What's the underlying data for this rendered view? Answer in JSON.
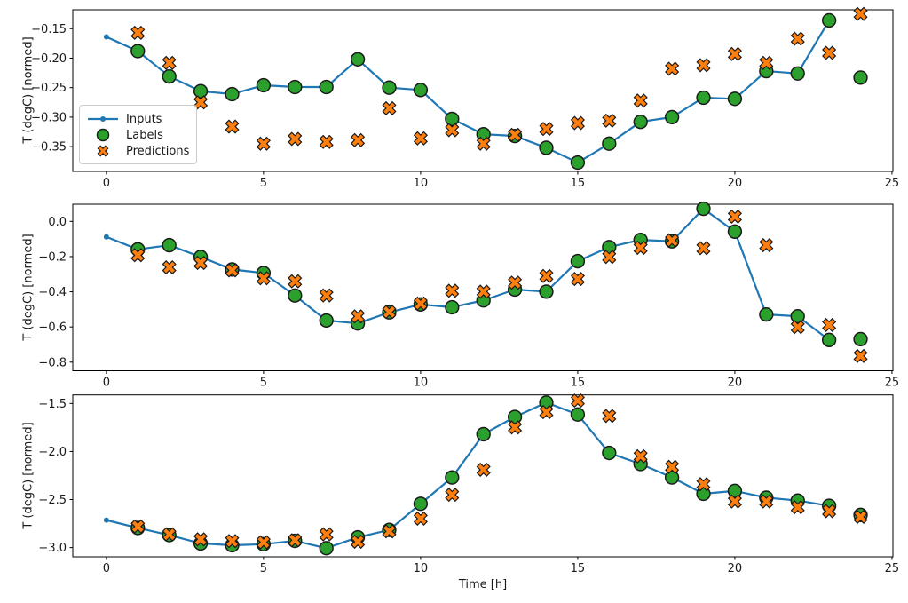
{
  "figure": {
    "xlabel": "Time [h]",
    "legend": {
      "position": "center left of top subplot",
      "items": [
        {
          "label": "Inputs",
          "marker": "line-with-dot",
          "color": "#1f77b4"
        },
        {
          "label": "Labels",
          "marker": "circle",
          "color": "#2ca02c"
        },
        {
          "label": "Predictions",
          "marker": "X",
          "color": "#ff7f0e"
        }
      ]
    },
    "colors": {
      "inputs_line": "#1f77b4",
      "labels_fill": "#2ca02c",
      "predictions_fill": "#ff7f0e",
      "marker_edge": "#1a1a1a",
      "spine": "#000000"
    }
  },
  "chart_data": [
    {
      "type": "line",
      "title": "",
      "ylabel": "T (degC) [normed]",
      "xlim": [
        -1.07,
        25.03
      ],
      "ylim": [
        -0.392,
        -0.118
      ],
      "xticks": [
        0,
        5,
        10,
        15,
        20,
        25
      ],
      "xtick_labels": [
        "0",
        "5",
        "10",
        "15",
        "20",
        "25"
      ],
      "ytick_values": [
        -0.15,
        -0.2,
        -0.25,
        -0.3,
        -0.35
      ],
      "ytick_labels": [
        "−0.15",
        "−0.20",
        "−0.25",
        "−0.30",
        "−0.35"
      ],
      "grid": false,
      "series": [
        {
          "name": "Inputs",
          "style": "line+dot",
          "x": [
            0,
            1,
            2,
            3,
            4,
            5,
            6,
            7,
            8,
            9,
            10,
            11,
            12,
            13,
            14,
            15,
            16,
            17,
            18,
            19,
            20,
            21,
            22,
            23
          ],
          "y": [
            -0.164,
            -0.188,
            -0.231,
            -0.256,
            -0.261,
            -0.246,
            -0.249,
            -0.249,
            -0.202,
            -0.25,
            -0.254,
            -0.303,
            -0.329,
            -0.332,
            -0.352,
            -0.377,
            -0.345,
            -0.308,
            -0.3,
            -0.267,
            -0.269,
            -0.222,
            -0.226,
            -0.136
          ]
        },
        {
          "name": "Labels",
          "style": "circle",
          "x": [
            1,
            2,
            3,
            4,
            5,
            6,
            7,
            8,
            9,
            10,
            11,
            12,
            13,
            14,
            15,
            16,
            17,
            18,
            19,
            20,
            21,
            22,
            23,
            24
          ],
          "y": [
            -0.188,
            -0.231,
            -0.256,
            -0.261,
            -0.246,
            -0.249,
            -0.249,
            -0.202,
            -0.25,
            -0.254,
            -0.303,
            -0.329,
            -0.332,
            -0.352,
            -0.377,
            -0.345,
            -0.308,
            -0.3,
            -0.267,
            -0.269,
            -0.222,
            -0.226,
            -0.136,
            -0.233
          ]
        },
        {
          "name": "Predictions",
          "style": "X",
          "x": [
            1,
            2,
            3,
            4,
            5,
            6,
            7,
            8,
            9,
            10,
            11,
            12,
            13,
            14,
            15,
            16,
            17,
            18,
            19,
            20,
            21,
            22,
            23,
            24
          ],
          "y": [
            -0.157,
            -0.208,
            -0.275,
            -0.316,
            -0.345,
            -0.337,
            -0.342,
            -0.339,
            -0.285,
            -0.336,
            -0.322,
            -0.345,
            -0.33,
            -0.32,
            -0.31,
            -0.306,
            -0.272,
            -0.218,
            -0.212,
            -0.193,
            -0.208,
            -0.167,
            -0.191,
            -0.125
          ]
        }
      ]
    },
    {
      "type": "line",
      "title": "",
      "ylabel": "T (degC) [normed]",
      "xlim": [
        -1.07,
        25.03
      ],
      "ylim": [
        -0.849,
        0.0975
      ],
      "xticks": [
        0,
        5,
        10,
        15,
        20,
        25
      ],
      "xtick_labels": [
        "0",
        "5",
        "10",
        "15",
        "20",
        "25"
      ],
      "ytick_values": [
        0.0,
        -0.2,
        -0.4,
        -0.6,
        -0.8
      ],
      "ytick_labels": [
        "0.0",
        "−0.2",
        "−0.4",
        "−0.6",
        "−0.8"
      ],
      "grid": false,
      "series": [
        {
          "name": "Inputs",
          "style": "line+dot",
          "x": [
            0,
            1,
            2,
            3,
            4,
            5,
            6,
            7,
            8,
            9,
            10,
            11,
            12,
            13,
            14,
            15,
            16,
            17,
            18,
            19,
            20,
            21,
            22,
            23
          ],
          "y": [
            -0.088,
            -0.159,
            -0.135,
            -0.202,
            -0.273,
            -0.293,
            -0.421,
            -0.563,
            -0.58,
            -0.517,
            -0.472,
            -0.488,
            -0.449,
            -0.387,
            -0.399,
            -0.226,
            -0.146,
            -0.105,
            -0.113,
            0.072,
            -0.058,
            -0.529,
            -0.539,
            -0.674
          ]
        },
        {
          "name": "Labels",
          "style": "circle",
          "x": [
            1,
            2,
            3,
            4,
            5,
            6,
            7,
            8,
            9,
            10,
            11,
            12,
            13,
            14,
            15,
            16,
            17,
            18,
            19,
            20,
            21,
            22,
            23,
            24
          ],
          "y": [
            -0.159,
            -0.135,
            -0.202,
            -0.273,
            -0.293,
            -0.421,
            -0.563,
            -0.58,
            -0.517,
            -0.472,
            -0.488,
            -0.449,
            -0.387,
            -0.399,
            -0.226,
            -0.146,
            -0.105,
            -0.113,
            0.072,
            -0.058,
            -0.529,
            -0.539,
            -0.674,
            -0.669
          ]
        },
        {
          "name": "Predictions",
          "style": "X",
          "x": [
            1,
            2,
            3,
            4,
            5,
            6,
            7,
            8,
            9,
            10,
            11,
            12,
            13,
            14,
            15,
            16,
            17,
            18,
            19,
            20,
            21,
            22,
            23,
            24
          ],
          "y": [
            -0.192,
            -0.261,
            -0.236,
            -0.278,
            -0.323,
            -0.34,
            -0.421,
            -0.54,
            -0.515,
            -0.467,
            -0.394,
            -0.399,
            -0.348,
            -0.31,
            -0.327,
            -0.202,
            -0.15,
            -0.108,
            -0.152,
            0.027,
            -0.135,
            -0.601,
            -0.589,
            -0.765
          ]
        }
      ]
    },
    {
      "type": "line",
      "title": "",
      "ylabel": "T (degC) [normed]",
      "xlabel": "Time [h]",
      "xlim": [
        -1.07,
        25.03
      ],
      "ylim": [
        -3.096,
        -1.411
      ],
      "xticks": [
        0,
        5,
        10,
        15,
        20,
        25
      ],
      "xtick_labels": [
        "0",
        "5",
        "10",
        "15",
        "20",
        "25"
      ],
      "ytick_values": [
        -1.5,
        -2.0,
        -2.5,
        -3.0
      ],
      "ytick_labels": [
        "−1.5",
        "−2.0",
        "−2.5",
        "−3.0"
      ],
      "grid": false,
      "series": [
        {
          "name": "Inputs",
          "style": "line+dot",
          "x": [
            0,
            1,
            2,
            3,
            4,
            5,
            6,
            7,
            8,
            9,
            10,
            11,
            12,
            13,
            14,
            15,
            16,
            17,
            18,
            19,
            20,
            21,
            22,
            23
          ],
          "y": [
            -2.714,
            -2.795,
            -2.87,
            -2.957,
            -2.976,
            -2.965,
            -2.93,
            -3.006,
            -2.893,
            -2.816,
            -2.544,
            -2.27,
            -1.82,
            -1.64,
            -1.49,
            -1.615,
            -2.015,
            -2.13,
            -2.27,
            -2.44,
            -2.41,
            -2.48,
            -2.51,
            -2.565
          ]
        },
        {
          "name": "Labels",
          "style": "circle",
          "x": [
            1,
            2,
            3,
            4,
            5,
            6,
            7,
            8,
            9,
            10,
            11,
            12,
            13,
            14,
            15,
            16,
            17,
            18,
            19,
            20,
            21,
            22,
            23,
            24
          ],
          "y": [
            -2.795,
            -2.87,
            -2.957,
            -2.976,
            -2.965,
            -2.93,
            -3.006,
            -2.893,
            -2.816,
            -2.544,
            -2.27,
            -1.82,
            -1.64,
            -1.49,
            -1.615,
            -2.015,
            -2.13,
            -2.27,
            -2.44,
            -2.41,
            -2.48,
            -2.51,
            -2.565,
            -2.66
          ]
        },
        {
          "name": "Predictions",
          "style": "X",
          "x": [
            1,
            2,
            3,
            4,
            5,
            6,
            7,
            8,
            9,
            10,
            11,
            12,
            13,
            14,
            15,
            16,
            17,
            18,
            19,
            20,
            21,
            22,
            23,
            24
          ],
          "y": [
            -2.78,
            -2.862,
            -2.914,
            -2.932,
            -2.945,
            -2.923,
            -2.862,
            -2.939,
            -2.831,
            -2.698,
            -2.45,
            -2.19,
            -1.75,
            -1.59,
            -1.47,
            -1.63,
            -2.05,
            -2.16,
            -2.34,
            -2.52,
            -2.52,
            -2.58,
            -2.62,
            -2.68
          ]
        }
      ]
    }
  ]
}
